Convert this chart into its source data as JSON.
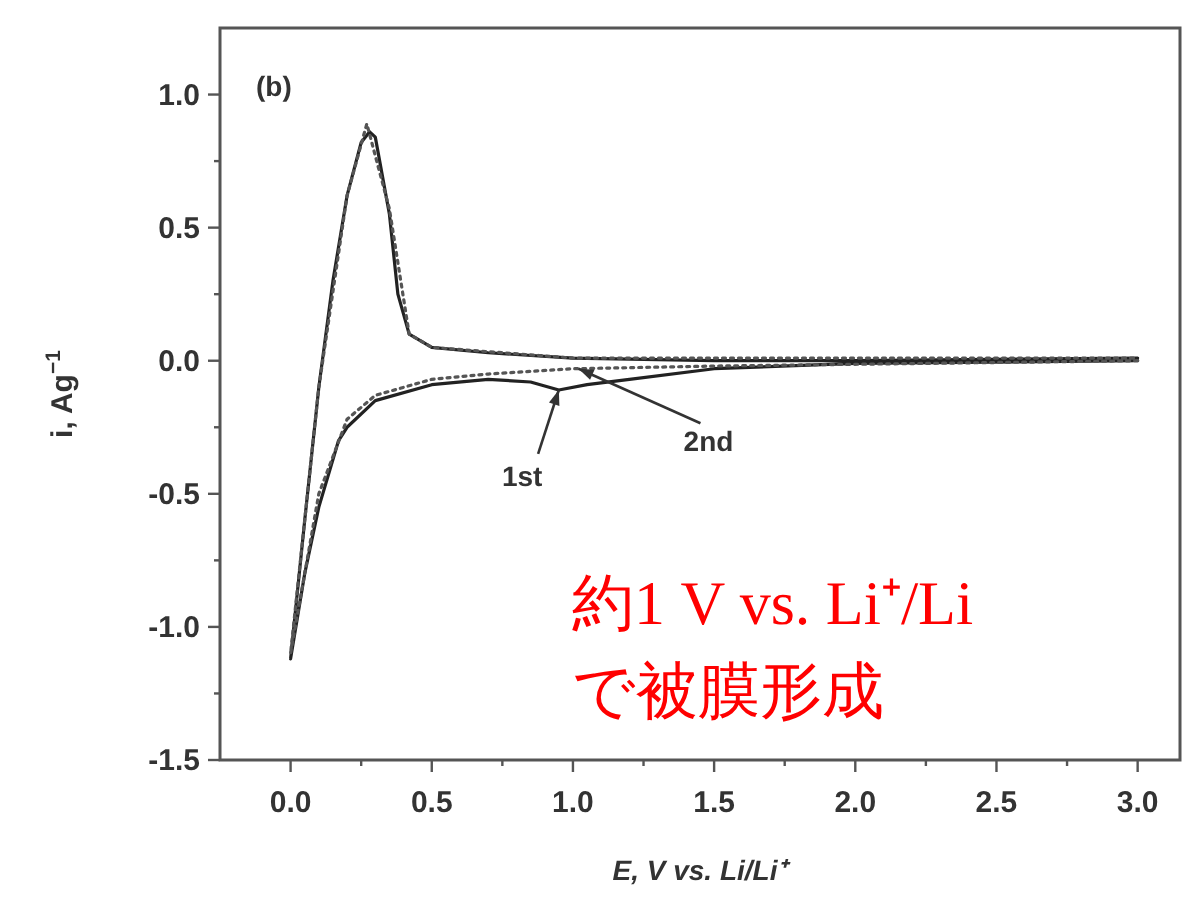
{
  "chart_data": {
    "type": "line",
    "title": "(b)",
    "xlabel": "E, V vs. Li/Li⁺",
    "ylabel": "i, Ag$^{−1}$",
    "xlim": [
      -0.25,
      3.15
    ],
    "ylim": [
      -1.5,
      1.25
    ],
    "xticks": [
      {
        "value": 0,
        "label": "0.0"
      },
      {
        "value": 0.25,
        "label": null
      },
      0.5,
      {
        "value": 0.75,
        "label": null
      },
      {
        "value": 1,
        "label": "1.0"
      },
      {
        "value": 1.25,
        "label": null
      },
      1.5,
      {
        "value": 1.75,
        "label": null
      },
      {
        "value": 2,
        "label": "2.0"
      },
      {
        "value": 2.25,
        "label": null
      },
      2.5,
      {
        "value": 2.75,
        "label": null
      },
      {
        "value": 3,
        "label": "3.0"
      }
    ],
    "yticks": [
      -1.5,
      {
        "value": -1.25,
        "label": null
      },
      {
        "value": -1,
        "label": "-1.0"
      },
      {
        "value": -0.75,
        "label": null
      },
      -0.5,
      {
        "value": -0.25,
        "label": null
      },
      {
        "value": 0,
        "label": "0.0"
      },
      {
        "value": 0.25,
        "label": null
      },
      0.5,
      {
        "value": 0.75,
        "label": null
      },
      {
        "value": 1,
        "label": "1.0"
      }
    ],
    "series": [
      {
        "color": "#222222",
        "line_style": "solid",
        "x": [
          3.0,
          2.0,
          1.5,
          1.2,
          1.05,
          0.95,
          0.85,
          0.7,
          0.5,
          0.3,
          0.2,
          0.17,
          0.1,
          0.05,
          0.0,
          0.05,
          0.1,
          0.15,
          0.2,
          0.25,
          0.28,
          0.3,
          0.35,
          0.38,
          0.42,
          0.5,
          0.7,
          1.0,
          1.5,
          2.0,
          3.0
        ],
        "values": [
          0.0,
          -0.01,
          -0.03,
          -0.07,
          -0.09,
          -0.11,
          -0.08,
          -0.07,
          -0.09,
          -0.15,
          -0.25,
          -0.3,
          -0.55,
          -0.8,
          -1.12,
          -0.6,
          -0.1,
          0.3,
          0.62,
          0.82,
          0.86,
          0.84,
          0.55,
          0.25,
          0.1,
          0.05,
          0.03,
          0.01,
          0.0,
          0.0,
          0.01
        ]
      },
      {
        "color": "#555555",
        "line_style": "dotted",
        "x": [
          3.0,
          1.5,
          1.0,
          0.7,
          0.5,
          0.3,
          0.2,
          0.1,
          0.05,
          0.0,
          0.1,
          0.2,
          0.27,
          0.35,
          0.42,
          0.5,
          1.0,
          3.0
        ],
        "values": [
          0.0,
          -0.02,
          -0.03,
          -0.05,
          -0.07,
          -0.13,
          -0.22,
          -0.5,
          -0.8,
          -1.1,
          -0.1,
          0.62,
          0.89,
          0.57,
          0.1,
          0.05,
          0.01,
          0.01
        ]
      }
    ],
    "annotations": [
      {
        "text": "1st",
        "x": 0.95,
        "y": -0.11
      },
      {
        "text": "2nd",
        "x": 1.02,
        "y": -0.03
      },
      "約1 V vs. Li⁺/Li",
      "で被膜形成"
    ]
  }
}
